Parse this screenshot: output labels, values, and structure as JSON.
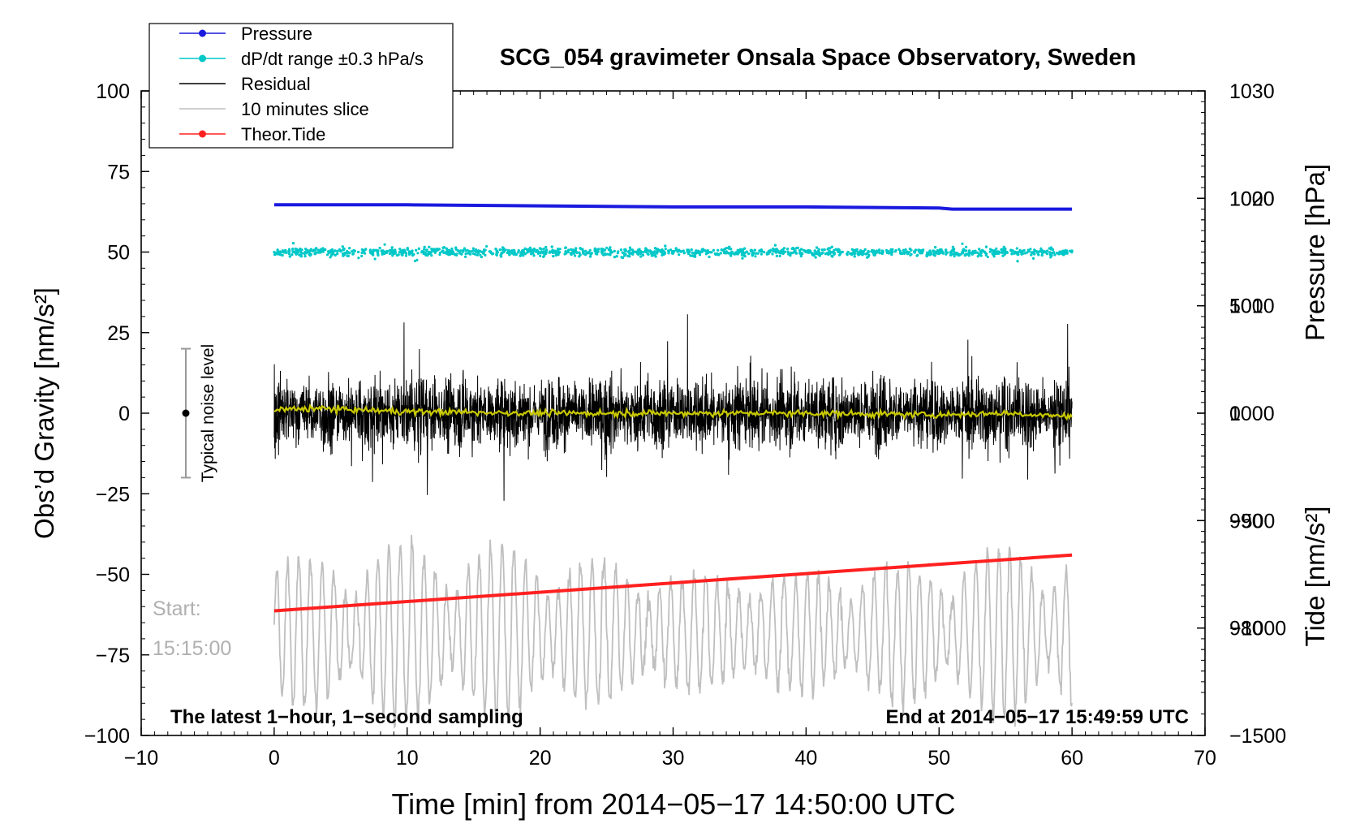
{
  "chart_data": {
    "type": "line",
    "title": "SCG_054 gravimeter Onsala Space Observatory, Sweden",
    "xlabel": "Time [min] from 2014−05−17 14:50:00 UTC",
    "ylabel_left": "Obs’d Gravity [nm/s²]",
    "ylabel_right_top": "Pressure [hPa]",
    "ylabel_right_bottom": "Tide [nm/s²]",
    "xlim": [
      -10,
      70
    ],
    "ylim": [
      -100,
      100
    ],
    "pressure_axis": {
      "ylim": [
        970,
        1030
      ],
      "ticks": [
        980,
        990,
        1000,
        1010,
        1020,
        1030
      ]
    },
    "tide_axis": {
      "ylim": [
        -1500,
        1500
      ],
      "ticks": [
        -1500,
        -1000,
        -500,
        0,
        500,
        1000
      ]
    },
    "x_ticks": [
      "−10",
      "0",
      "10",
      "20",
      "30",
      "40",
      "50",
      "60",
      "70"
    ],
    "x_tick_values": [
      -10,
      0,
      10,
      20,
      30,
      40,
      50,
      60,
      70
    ],
    "y_ticks": [
      "−100",
      "−75",
      "−50",
      "−25",
      "0",
      "25",
      "50",
      "75",
      "100"
    ],
    "y_tick_values": [
      -100,
      -75,
      -50,
      -25,
      0,
      25,
      50,
      75,
      100
    ],
    "pressure_tick_labels": [
      "980",
      "990",
      "1000",
      "1010",
      "1020",
      "1030"
    ],
    "tide_tick_labels": [
      "−1500",
      "−1000",
      "−500",
      "0",
      "500",
      "1000"
    ],
    "legend": {
      "position": "top-left",
      "entries": [
        {
          "label": "Pressure",
          "color": "#1a1adf",
          "marker": true
        },
        {
          "label": "dP/dt range ±0.3 hPa/s",
          "color": "#00c8c8",
          "marker": true
        },
        {
          "label": "Residual",
          "color": "#000000",
          "marker": false
        },
        {
          "label": "10 minutes slice",
          "color": "#bfbfbf",
          "marker": false
        },
        {
          "label": "Theor.Tide",
          "color": "#ff2020",
          "marker": true
        }
      ]
    },
    "series": [
      {
        "name": "Pressure",
        "axis": "pressure",
        "color": "#1a1adf",
        "x": [
          0,
          10,
          20,
          30,
          40,
          50,
          51,
          60
        ],
        "values": [
          1019.4,
          1019.4,
          1019.3,
          1019.2,
          1019.2,
          1019.1,
          1019.0,
          1019.0
        ]
      },
      {
        "name": "dP/dt range ±0.3 hPa/s",
        "axis": "gravity",
        "color": "#00c8c8",
        "x": [
          0,
          60
        ],
        "values": [
          50,
          50
        ],
        "scatter_spread": 3
      },
      {
        "name": "Residual",
        "axis": "gravity",
        "color": "#000000",
        "x": [
          0,
          60
        ],
        "values": [
          0,
          0
        ],
        "amplitude": 35
      },
      {
        "name": "Residual smoothed",
        "axis": "gravity",
        "color": "#c8c800",
        "x": [
          0,
          3,
          10,
          20,
          30,
          40,
          50,
          55,
          60
        ],
        "values": [
          1,
          1.5,
          0.5,
          0,
          0,
          0,
          -0.5,
          0,
          -1
        ]
      },
      {
        "name": "10 minutes slice",
        "axis": "gravity",
        "color": "#bfbfbf",
        "x": [
          0,
          60
        ],
        "values": [
          -68,
          -68
        ],
        "amplitude": 28
      },
      {
        "name": "Theor.Tide",
        "axis": "tide",
        "color": "#ff2020",
        "x": [
          0,
          60
        ],
        "values": [
          -920,
          -660
        ]
      }
    ],
    "annotations": {
      "noise_label": "Typical noise level",
      "noise_range": [
        -20,
        20
      ],
      "start_label": "Start:",
      "start_time": "15:15:00",
      "latest_label": "The latest 1−hour, 1−second sampling",
      "end_label": "End at 2014−05−17 15:49:59 UTC"
    }
  }
}
